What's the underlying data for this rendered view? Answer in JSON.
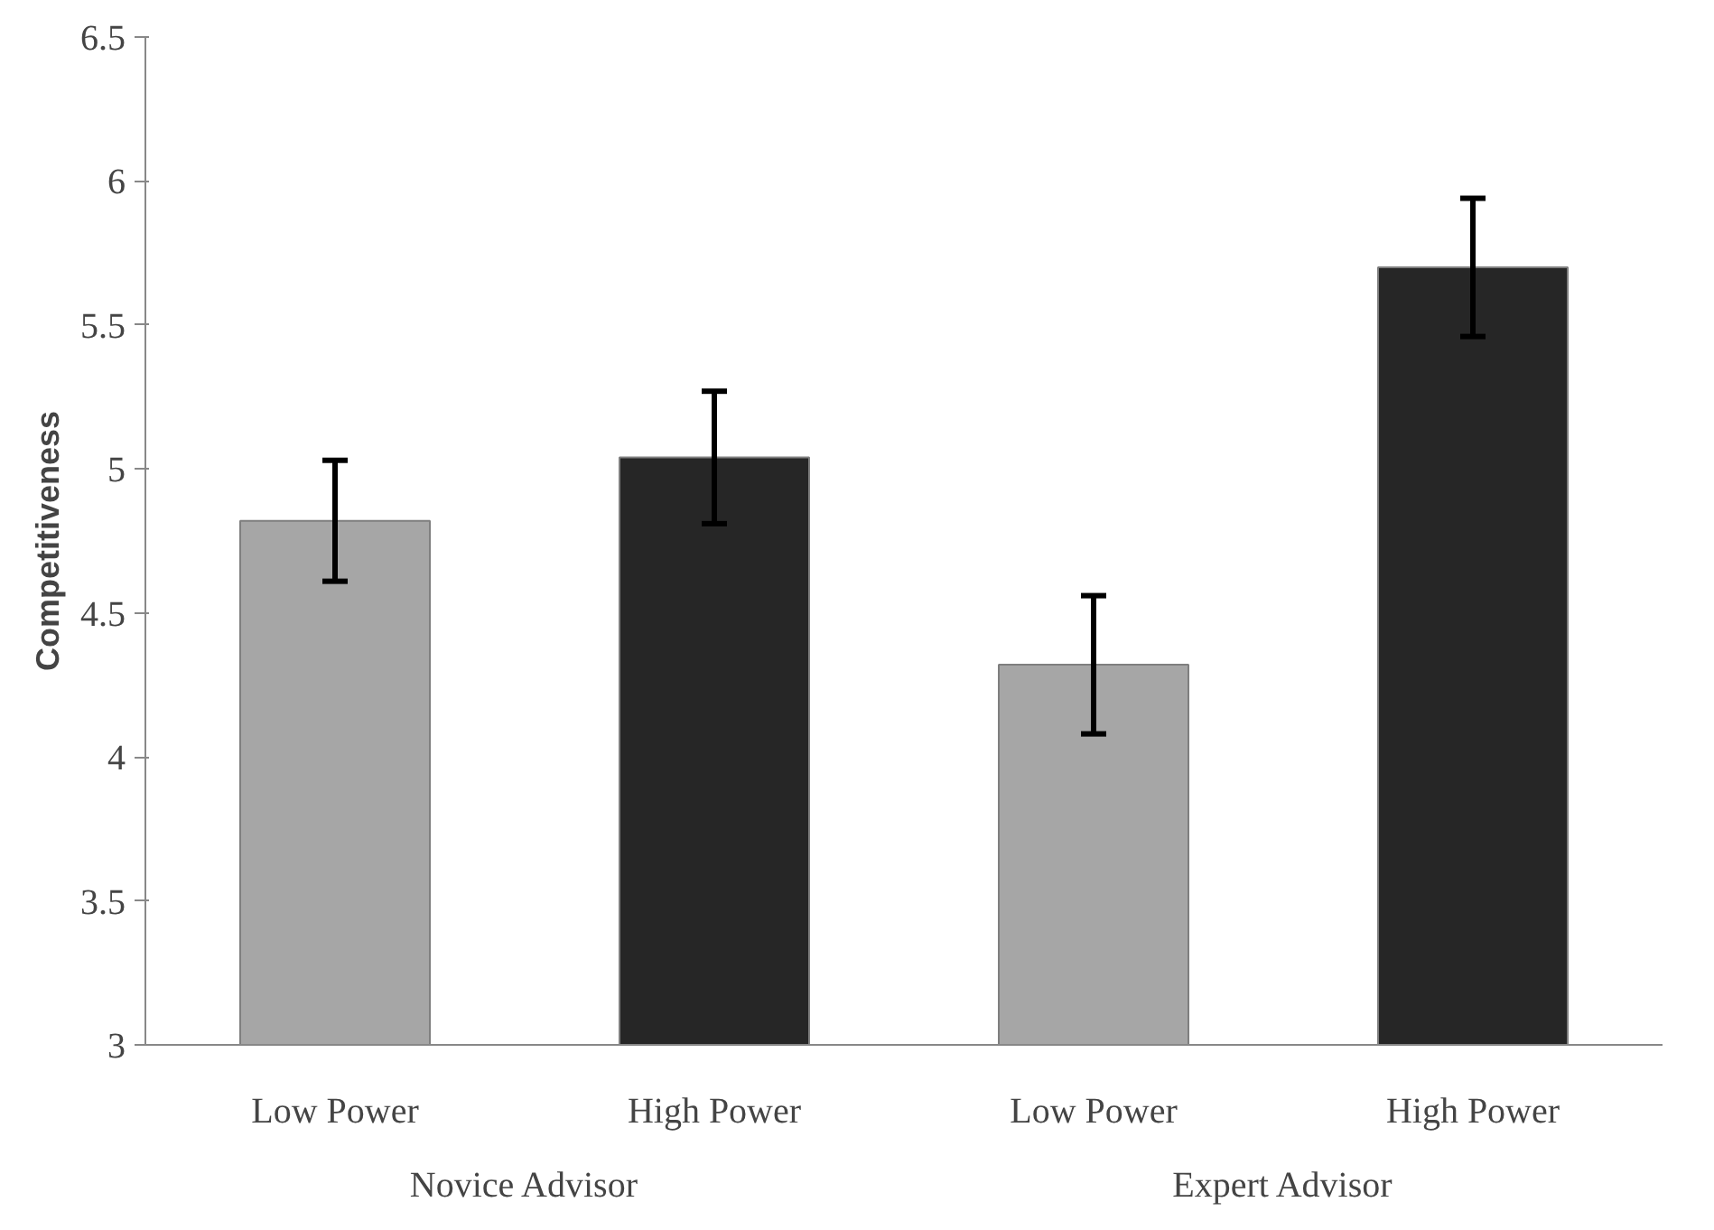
{
  "chart_data": {
    "type": "bar",
    "ylabel": "Competitiveness",
    "categories": [
      "Low Power",
      "High Power",
      "Low Power",
      "High Power"
    ],
    "values": [
      4.82,
      5.04,
      4.32,
      5.7
    ],
    "errors": [
      0.21,
      0.23,
      0.24,
      0.24
    ],
    "colors": [
      "#a6a6a6",
      "#262626",
      "#a6a6a6",
      "#262626"
    ],
    "annotations": [
      "Novice Advisor",
      "Expert Advisor"
    ],
    "ylim": [
      3,
      6.5
    ],
    "yticks": [
      3,
      3.5,
      4,
      4.5,
      5,
      5.5,
      6,
      6.5
    ],
    "grid": false
  }
}
